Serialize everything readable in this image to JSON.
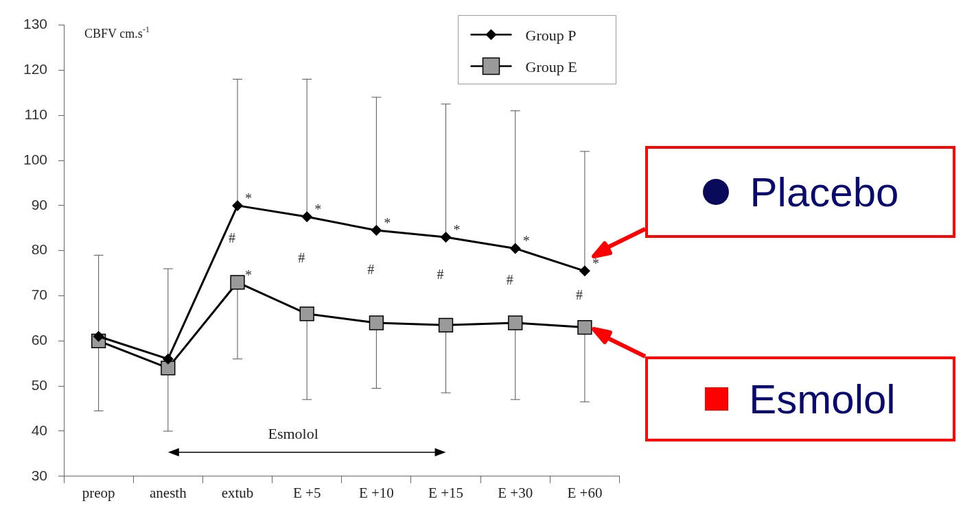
{
  "chart_data": {
    "type": "line",
    "ylabel": "CBFV cm.s$^{-1}$",
    "categories": [
      "preop",
      "anesth",
      "extub",
      "E +5",
      "E +10",
      "E +15",
      "E +30",
      "E +60"
    ],
    "series": [
      {
        "name": "Group P",
        "color": "#000000",
        "marker": "diamond",
        "values": [
          61,
          56,
          90,
          87.5,
          84.5,
          83,
          80.5,
          75.5
        ],
        "errors": [
          [
            61,
            79
          ],
          [
            56,
            76
          ],
          [
            90,
            118
          ],
          [
            87.5,
            118
          ],
          [
            84.5,
            114
          ],
          [
            83,
            112.5
          ],
          [
            80.5,
            111
          ],
          [
            75.5,
            102
          ]
        ]
      },
      {
        "name": "Group E",
        "color": "#9a9a9a",
        "marker": "square",
        "values": [
          60,
          54,
          73,
          66,
          64,
          63.5,
          64,
          63
        ],
        "errors": [
          [
            44.5,
            60
          ],
          [
            40,
            54
          ],
          [
            56,
            73
          ],
          [
            47,
            66
          ],
          [
            49.5,
            64
          ],
          [
            48.5,
            63.5
          ],
          [
            47,
            64
          ],
          [
            46.5,
            63
          ]
        ]
      }
    ],
    "ylim": [
      30,
      130
    ],
    "yticks": [
      30,
      40,
      50,
      60,
      70,
      80,
      90,
      100,
      110,
      120,
      130
    ],
    "grid": false,
    "legend": "top right",
    "line_style": "solid",
    "annotations": [
      {
        "text": "*",
        "x": "extub",
        "y": 90
      },
      {
        "text": "*",
        "x": "E +5",
        "y": 87.5
      },
      {
        "text": "*",
        "x": "E +10",
        "y": 84.5
      },
      {
        "text": "*",
        "x": "E +15",
        "y": 83
      },
      {
        "text": "*",
        "x": "E +30",
        "y": 80.5
      },
      {
        "text": "*",
        "x": "E +60",
        "y": 75.5
      },
      {
        "text": "*",
        "x": "extub",
        "y": 73
      },
      "Placebo",
      "Esmolol",
      "Esmolol",
      "#",
      "#",
      "#",
      "#",
      "#",
      "#"
    ]
  }
}
